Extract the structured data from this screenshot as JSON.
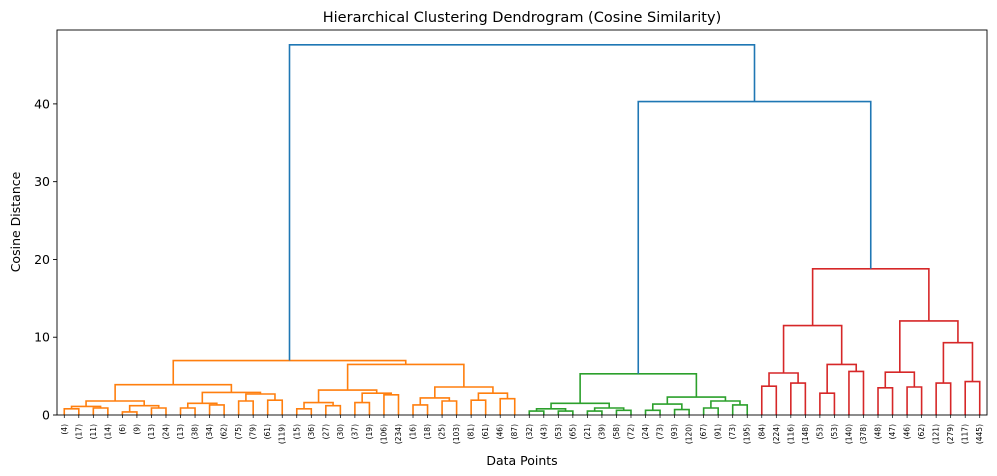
{
  "chart_data": {
    "type": "dendrogram",
    "title": "Hierarchical Clustering Dendrogram (Cosine Similarity)",
    "xlabel": "Data Points",
    "ylabel": "Cosine Distance",
    "ylim": [
      0,
      49.5
    ],
    "yticks": [
      0,
      10,
      20,
      30,
      40
    ],
    "grid": false,
    "leaf_labels": [
      "(4)",
      "(17)",
      "(11)",
      "(14)",
      "(6)",
      "(9)",
      "(13)",
      "(24)",
      "(13)",
      "(38)",
      "(34)",
      "(62)",
      "(75)",
      "(79)",
      "(61)",
      "(119)",
      "(15)",
      "(36)",
      "(27)",
      "(30)",
      "(37)",
      "(19)",
      "(106)",
      "(234)",
      "(16)",
      "(18)",
      "(25)",
      "(103)",
      "(81)",
      "(61)",
      "(46)",
      "(87)",
      "(32)",
      "(43)",
      "(53)",
      "(65)",
      "(21)",
      "(39)",
      "(58)",
      "(72)",
      "(24)",
      "(73)",
      "(93)",
      "(120)",
      "(67)",
      "(91)",
      "(73)",
      "(195)",
      "(84)",
      "(224)",
      "(116)",
      "(148)",
      "(53)",
      "(53)",
      "(140)",
      "(378)",
      "(48)",
      "(47)",
      "(46)",
      "(62)",
      "(121)",
      "(279)",
      "(117)",
      "(445)"
    ],
    "colors": {
      "orange": "#ff7f0e",
      "green": "#2ca02c",
      "red": "#d62728",
      "blue": "#1f77b4"
    },
    "links": [
      {
        "i": 0,
        "j": 1,
        "h": 0.8,
        "c": "orange"
      },
      {
        "i": 2,
        "j": 3,
        "h": 0.9,
        "c": "orange"
      },
      {
        "id": "o1",
        "i": "L0-1",
        "j": "L2-3",
        "h": 1.1,
        "c": "orange"
      },
      {
        "i": 4,
        "j": 5,
        "h": 0.4,
        "c": "orange"
      },
      {
        "i": 6,
        "j": 7,
        "h": 0.9,
        "c": "orange"
      },
      {
        "id": "o2",
        "i": "L4-5",
        "j": "L6-7",
        "h": 1.2,
        "c": "orange"
      },
      {
        "id": "o3",
        "i": "o1",
        "j": "o2",
        "h": 1.8,
        "c": "orange"
      },
      {
        "i": 8,
        "j": 9,
        "h": 0.9,
        "c": "orange"
      },
      {
        "i": 10,
        "j": 11,
        "h": 1.3,
        "c": "orange"
      },
      {
        "id": "o4",
        "i": "L8-9",
        "j": "L10-11",
        "h": 1.5,
        "c": "orange"
      },
      {
        "i": 12,
        "j": 13,
        "h": 1.8,
        "c": "orange"
      },
      {
        "i": 14,
        "j": 15,
        "h": 1.9,
        "c": "orange"
      },
      {
        "id": "o5",
        "i": "L12-13",
        "j": "L14-15",
        "h": 2.7,
        "c": "orange"
      },
      {
        "id": "o6",
        "i": "o4",
        "j": "o5",
        "h": 2.9,
        "c": "orange"
      },
      {
        "id": "o7",
        "i": "o3",
        "j": "o6",
        "h": 3.9,
        "c": "orange"
      },
      {
        "i": 16,
        "j": 17,
        "h": 0.8,
        "c": "orange"
      },
      {
        "i": 18,
        "j": 19,
        "h": 1.2,
        "c": "orange"
      },
      {
        "id": "o8",
        "i": "L16-17",
        "j": "L18-19",
        "h": 1.6,
        "c": "orange"
      },
      {
        "i": 20,
        "j": 21,
        "h": 1.6,
        "c": "orange"
      },
      {
        "i": 22,
        "j": 23,
        "h": 2.6,
        "c": "orange"
      },
      {
        "id": "o9",
        "i": "L20-21",
        "j": "L22-23",
        "h": 2.8,
        "c": "orange"
      },
      {
        "id": "o10",
        "i": "o8",
        "j": "o9",
        "h": 3.2,
        "c": "orange"
      },
      {
        "i": 24,
        "j": 25,
        "h": 1.3,
        "c": "orange"
      },
      {
        "i": 26,
        "j": 27,
        "h": 1.8,
        "c": "orange"
      },
      {
        "id": "o11",
        "i": "L24-25",
        "j": "L26-27",
        "h": 2.2,
        "c": "orange"
      },
      {
        "i": 28,
        "j": 29,
        "h": 1.9,
        "c": "orange"
      },
      {
        "i": 30,
        "j": 31,
        "h": 2.1,
        "c": "orange"
      },
      {
        "id": "o12",
        "i": "L28-29",
        "j": "L30-31",
        "h": 2.8,
        "c": "orange"
      },
      {
        "id": "o13",
        "i": "o11",
        "j": "o12",
        "h": 3.6,
        "c": "orange"
      },
      {
        "id": "o14",
        "i": "o10",
        "j": "o13",
        "h": 6.5,
        "c": "orange"
      },
      {
        "id": "o15",
        "i": "o7",
        "j": "o14",
        "h": 7.0,
        "c": "orange"
      },
      {
        "i": 32,
        "j": 33,
        "h": 0.5,
        "c": "green"
      },
      {
        "i": 34,
        "j": 35,
        "h": 0.5,
        "c": "green"
      },
      {
        "id": "g1",
        "i": "L32-33",
        "j": "L34-35",
        "h": 0.8,
        "c": "green"
      },
      {
        "i": 36,
        "j": 37,
        "h": 0.5,
        "c": "green"
      },
      {
        "i": 38,
        "j": 39,
        "h": 0.6,
        "c": "green"
      },
      {
        "id": "g2",
        "i": "L36-37",
        "j": "L38-39",
        "h": 0.9,
        "c": "green"
      },
      {
        "id": "g3",
        "i": "g1",
        "j": "g2",
        "h": 1.5,
        "c": "green"
      },
      {
        "i": 40,
        "j": 41,
        "h": 0.6,
        "c": "green"
      },
      {
        "i": 42,
        "j": 43,
        "h": 0.7,
        "c": "green"
      },
      {
        "id": "g4",
        "i": "L40-41",
        "j": "L42-43",
        "h": 1.4,
        "c": "green"
      },
      {
        "i": 44,
        "j": 45,
        "h": 0.9,
        "c": "green"
      },
      {
        "i": 46,
        "j": 47,
        "h": 1.3,
        "c": "green"
      },
      {
        "id": "g5",
        "i": "L44-45",
        "j": "L46-47",
        "h": 1.8,
        "c": "green"
      },
      {
        "id": "g6",
        "i": "g4",
        "j": "g5",
        "h": 2.3,
        "c": "green"
      },
      {
        "id": "g7",
        "i": "g3",
        "j": "g6",
        "h": 5.3,
        "c": "green"
      },
      {
        "i": 48,
        "j": 49,
        "h": 3.7,
        "c": "red"
      },
      {
        "i": 50,
        "j": 51,
        "h": 4.1,
        "c": "red"
      },
      {
        "id": "r1",
        "i": "L48-49",
        "j": "L50-51",
        "h": 5.4,
        "c": "red"
      },
      {
        "i": 52,
        "j": 53,
        "h": 2.8,
        "c": "red"
      },
      {
        "i": 54,
        "j": 55,
        "h": 5.6,
        "c": "red"
      },
      {
        "id": "r2",
        "i": "L52-53",
        "j": "L54-55",
        "h": 6.5,
        "c": "red"
      },
      {
        "id": "r3",
        "i": "r1",
        "j": "r2",
        "h": 11.5,
        "c": "red"
      },
      {
        "i": 56,
        "j": 57,
        "h": 3.5,
        "c": "red"
      },
      {
        "i": 58,
        "j": 59,
        "h": 3.6,
        "c": "red"
      },
      {
        "id": "r4",
        "i": "L56-57",
        "j": "L58-59",
        "h": 5.5,
        "c": "red"
      },
      {
        "i": 60,
        "j": 61,
        "h": 4.1,
        "c": "red"
      },
      {
        "i": 62,
        "j": 63,
        "h": 4.3,
        "c": "red"
      },
      {
        "id": "r5",
        "i": "L60-61",
        "j": "L62-63",
        "h": 9.3,
        "c": "red"
      },
      {
        "id": "r6",
        "i": "r4",
        "j": "r5",
        "h": 12.1,
        "c": "red"
      },
      {
        "id": "r7",
        "i": "r3",
        "j": "r6",
        "h": 18.8,
        "c": "red"
      },
      {
        "id": "b1",
        "i": "g7",
        "j": "r7",
        "h": 40.3,
        "c": "blue"
      },
      {
        "id": "b2",
        "i": "o15",
        "j": "b1",
        "h": 47.6,
        "c": "blue"
      }
    ]
  }
}
